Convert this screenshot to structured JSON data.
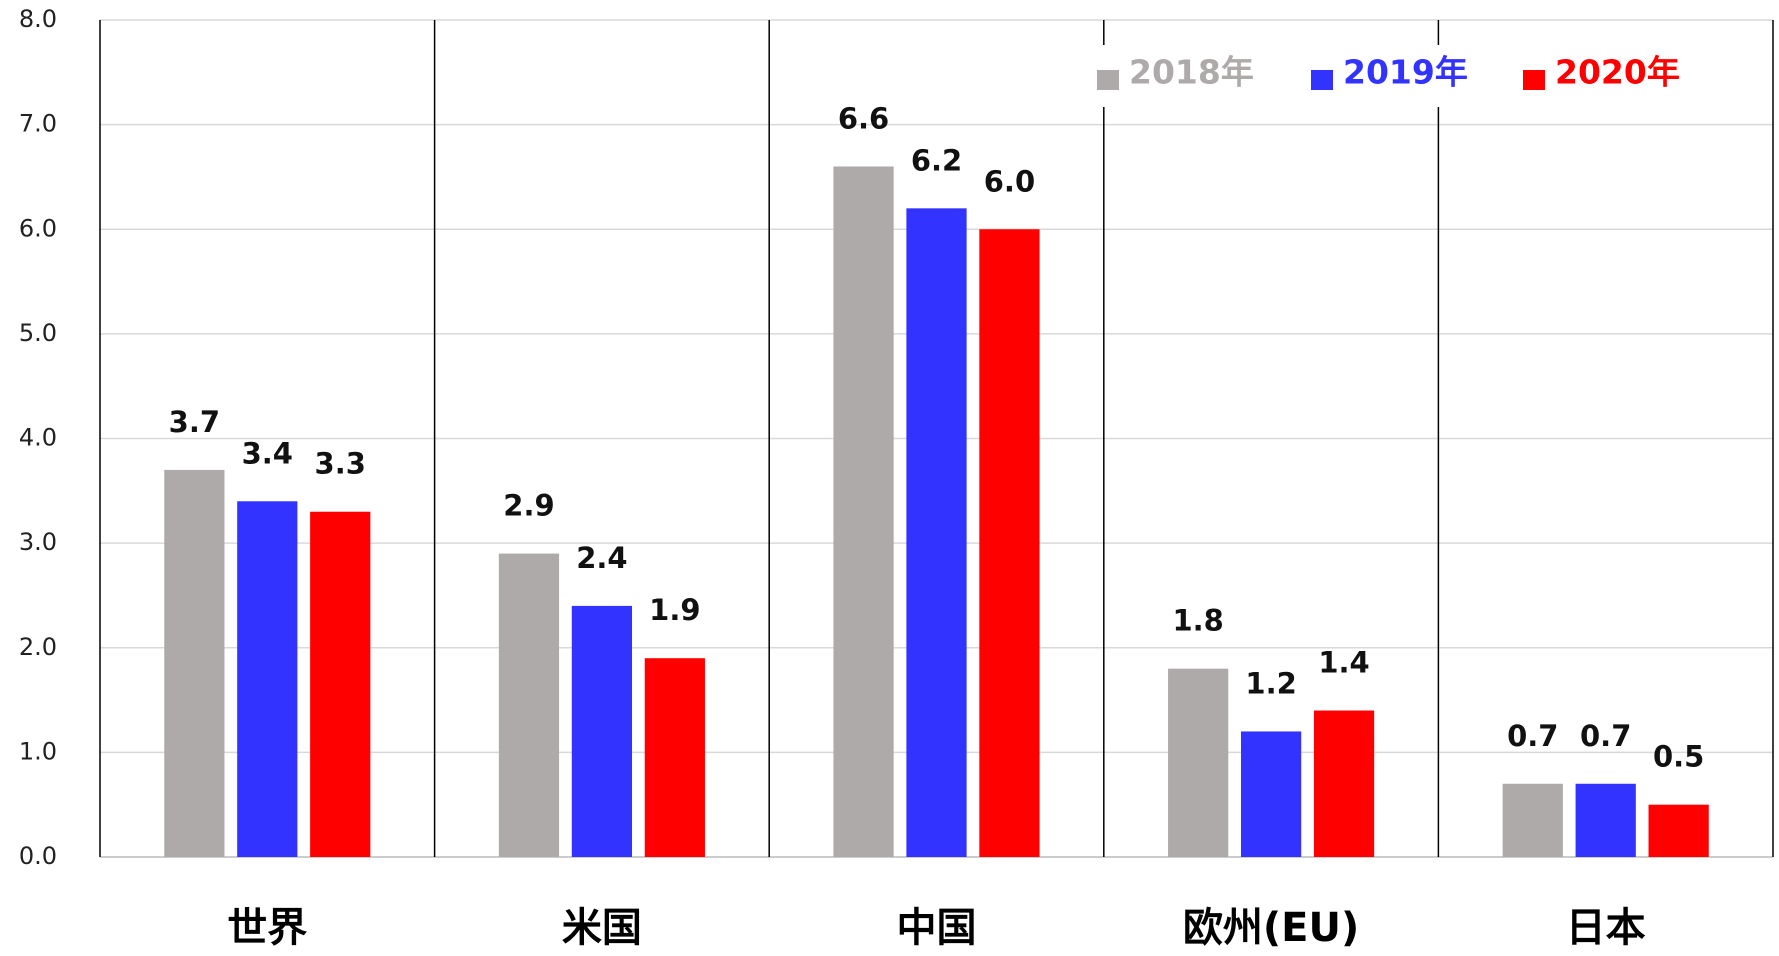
{
  "chart_data": {
    "type": "bar",
    "categories": [
      "世界",
      "米国",
      "中国",
      "欧州(EU)",
      "日本"
    ],
    "series": [
      {
        "name": "2018年",
        "color": "#aeaaaa",
        "values": [
          3.7,
          2.9,
          6.6,
          1.8,
          0.7
        ],
        "value_labels": [
          "3.7",
          "2.9",
          "6.6",
          "1.8",
          "0.7"
        ]
      },
      {
        "name": "2019年",
        "color": "#3333ff",
        "values": [
          3.4,
          2.4,
          6.2,
          1.2,
          0.7
        ],
        "value_labels": [
          "3.4",
          "2.4",
          "6.2",
          "1.2",
          "0.7"
        ]
      },
      {
        "name": "2020年",
        "color": "#ff0000",
        "values": [
          3.3,
          1.9,
          6.0,
          1.4,
          0.5
        ],
        "value_labels": [
          "3.3",
          "1.9",
          "6.0",
          "1.4",
          "0.5"
        ]
      }
    ],
    "ylim": [
      0,
      8
    ],
    "yticks": [
      {
        "value": 0,
        "label": "0.0"
      },
      {
        "value": 1,
        "label": "1.0"
      },
      {
        "value": 2,
        "label": "2.0"
      },
      {
        "value": 3,
        "label": "3.0"
      },
      {
        "value": 4,
        "label": "4.0"
      },
      {
        "value": 5,
        "label": "5.0"
      },
      {
        "value": 6,
        "label": "6.0"
      },
      {
        "value": 7,
        "label": "7.0"
      },
      {
        "value": 8,
        "label": "8.0"
      }
    ],
    "grid": true,
    "legend": "top-right"
  }
}
